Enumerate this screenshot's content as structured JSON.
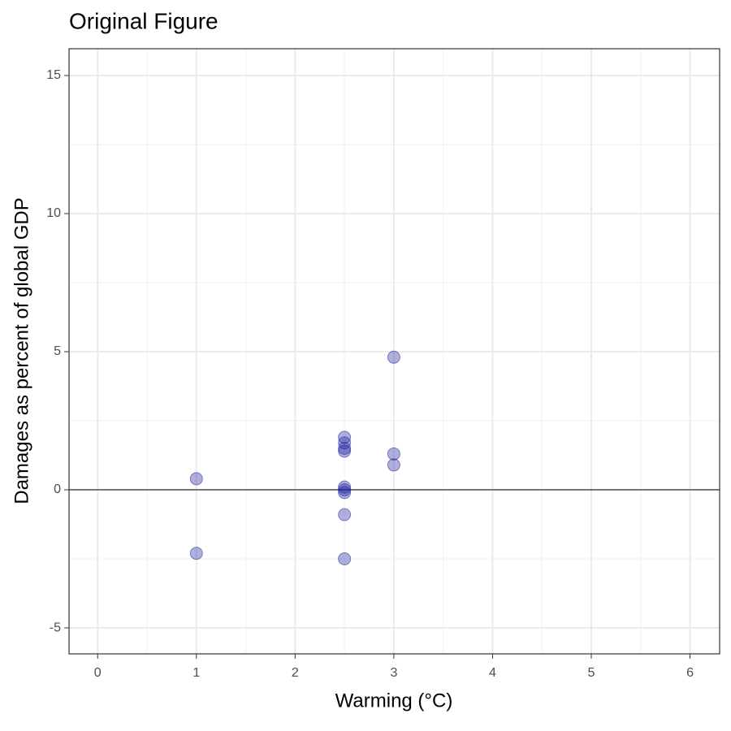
{
  "chart_data": {
    "type": "scatter",
    "title": "Original Figure",
    "xlabel": "Warming (°C)",
    "ylabel": "Damages as percent of global GDP",
    "series": [
      {
        "color": "#1a1a9c",
        "x": [
          1,
          1,
          2.5,
          2.5,
          2.5,
          2.5,
          2.5,
          2.5,
          2.5,
          2.5,
          2.5,
          3,
          3,
          3
        ],
        "values": [
          0.4,
          -2.3,
          1.9,
          1.7,
          1.5,
          1.4,
          0.1,
          0,
          -0.1,
          -0.9,
          -2.5,
          4.8,
          1.3,
          0.9
        ]
      }
    ],
    "xlim": [
      -0.29,
      6.3
    ],
    "xticks": [
      0,
      1,
      2,
      3,
      4,
      5,
      6
    ],
    "ylim": [
      -5.94,
      15.97
    ],
    "yticks": [
      -5,
      0,
      5,
      10,
      15
    ],
    "hline": 0,
    "grid": true
  }
}
